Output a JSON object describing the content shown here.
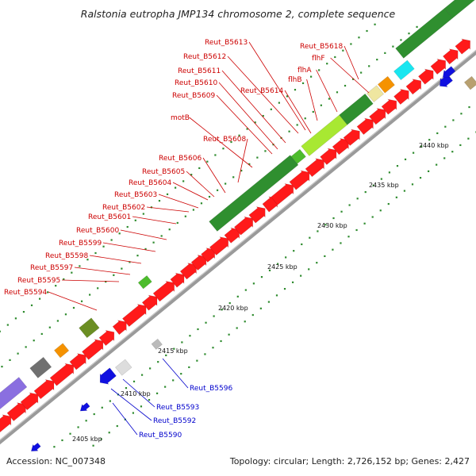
{
  "title": "Ralstonia eutropha JMP134 chromosome 2, complete sequence",
  "footer": {
    "accession": "Accession: NC_007348",
    "summary": "Topology: circular; Length: 2,726,152 bp; Genes: 2,427"
  },
  "position_labels": [
    "2405 kbp",
    "2410 kbp",
    "2415 kbp",
    "2420 kbp",
    "2425 kbp",
    "2430 kbp",
    "2435 kbp",
    "2440 kbp"
  ],
  "colors": {
    "axis": "#9a9a9a",
    "cds": "#ff1a1a",
    "upper_label": "#cc0000",
    "lower_label": "#0000cc",
    "green": "#2f8f2f",
    "light_green": "#4cbc2c",
    "bright_green": "#a8e832",
    "purple": "#8a6fe0",
    "magenta": "#e0209a",
    "olive": "#6b8e23",
    "orange": "#f59200",
    "cyan": "#19e6f0",
    "grey": "#707070",
    "khaki": "#efe6a0",
    "blue": "#1010e0"
  },
  "upper_labels": [
    "Reut_B5618",
    "flhF",
    "flhA",
    "flhB",
    "Reut_B5614",
    "Reut_B5613",
    "Reut_B5612",
    "Reut_B5611",
    "Reut_B5610",
    "Reut_B5609",
    "motB",
    "Reut_B5608",
    "Reut_B5606",
    "Reut_B5605",
    "Reut_B5604",
    "Reut_B5603",
    "Reut_B5602",
    "Reut_B5601",
    "Reut_B5600",
    "Reut_B5599",
    "Reut_B5598",
    "Reut_B5597",
    "Reut_B5595",
    "Reut_B5594"
  ],
  "lower_labels": [
    "Reut_B5596",
    "Reut_B5593",
    "Reut_B5592",
    "Reut_B5590"
  ]
}
